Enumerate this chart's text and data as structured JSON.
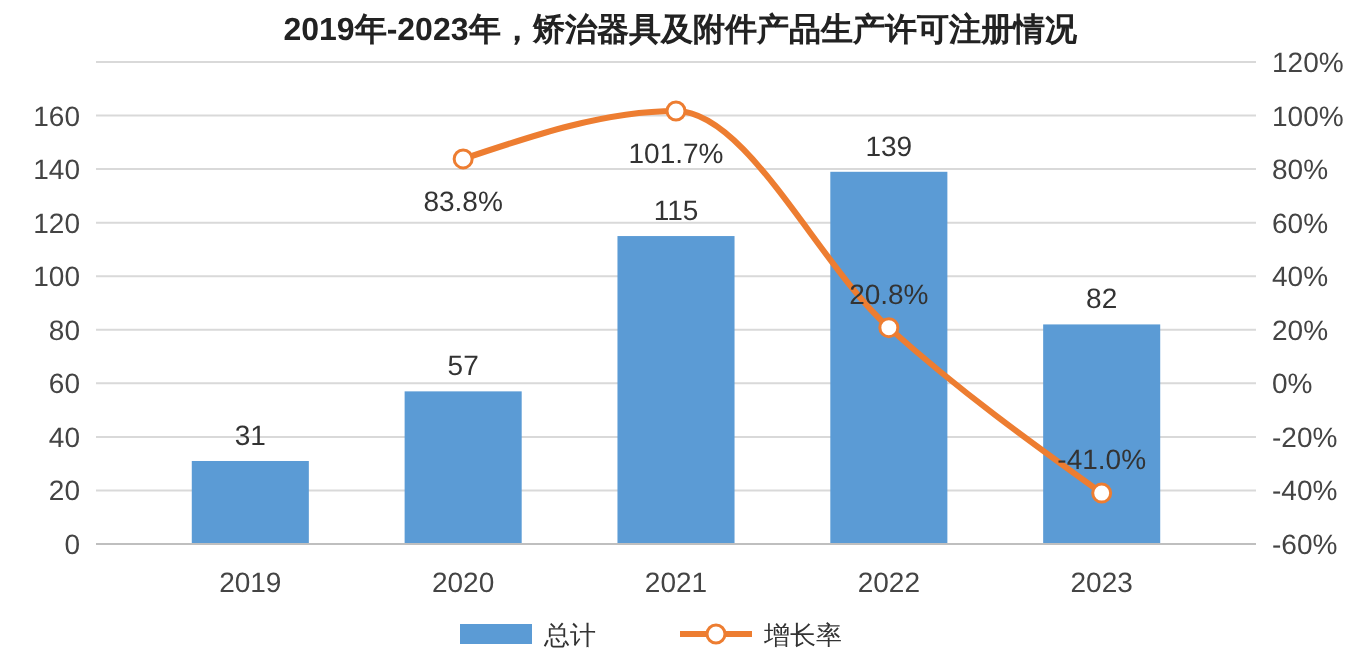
{
  "chart_data": {
    "type": "bar",
    "title": "2019年-2023年，矫治器具及附件产品生产许可注册情况",
    "categories": [
      "2019",
      "2020",
      "2021",
      "2022",
      "2023"
    ],
    "series": [
      {
        "name": "总计",
        "color": "#5b9bd5",
        "values": [
          31,
          57,
          115,
          139,
          82
        ],
        "value_labels": [
          "31",
          "57",
          "115",
          "139",
          "82"
        ]
      },
      {
        "name": "增长率",
        "type": "line",
        "axis": "y2",
        "color": "#ed7d31",
        "marker": "circle",
        "values": [
          null,
          83.8,
          101.7,
          20.8,
          -41.0
        ],
        "value_labels": [
          null,
          "83.8%",
          "101.7%",
          "20.8%",
          "-41.0%"
        ]
      }
    ],
    "ylim": [
      0,
      180
    ],
    "yticks": [
      0,
      20,
      40,
      60,
      80,
      100,
      120,
      140,
      160
    ],
    "y2lim": [
      -60,
      120
    ],
    "y2ticks": [
      {
        "value": -60,
        "label": "-60%"
      },
      {
        "value": -40,
        "label": "-40%"
      },
      {
        "value": -20,
        "label": "-20%"
      },
      {
        "value": 0,
        "label": "0%"
      },
      {
        "value": 20,
        "label": "20%"
      },
      {
        "value": 40,
        "label": "40%"
      },
      {
        "value": 60,
        "label": "60%"
      },
      {
        "value": 80,
        "label": "80%"
      },
      {
        "value": 100,
        "label": "100%"
      },
      {
        "value": 120,
        "label": "120%"
      }
    ],
    "grid": "y",
    "legend": "bottom"
  }
}
